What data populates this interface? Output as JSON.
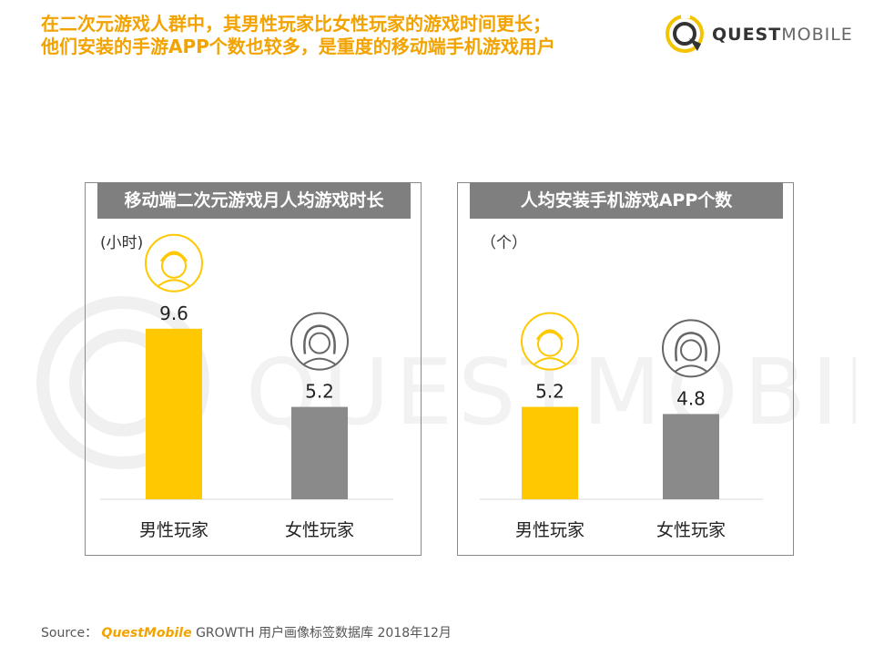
{
  "headline": {
    "line1": "在二次元游戏人群中，其男性玩家比女性玩家的游戏时间更长；",
    "line2": "他们安装的手游APP个数也较多，是重度的移动端手机游戏用户"
  },
  "logo": {
    "text_bold": "QUEST",
    "text_light": "MOBILE",
    "accent_color": "#f5c400",
    "icon": "questmobile-logo-icon"
  },
  "watermark": {
    "text": "QUESTMOBILE"
  },
  "colors": {
    "male": "#ffc800",
    "female": "#8a8a8a",
    "title_bg": "#7f7f7f",
    "headline": "#f2a300"
  },
  "chart_data": [
    {
      "type": "bar",
      "title": "移动端二次元游戏月人均游戏时长",
      "unit_label": "(小时)",
      "categories": [
        "男性玩家",
        "女性玩家"
      ],
      "values": [
        9.6,
        5.2
      ],
      "value_labels": [
        "9.6",
        "5.2"
      ],
      "icons": [
        "male-avatar-icon",
        "female-avatar-icon"
      ],
      "ylim": [
        0,
        11
      ],
      "grid": false,
      "legend": "none"
    },
    {
      "type": "bar",
      "title": "人均安装手机游戏APP个数",
      "unit_label": "（个）",
      "categories": [
        "男性玩家",
        "女性玩家"
      ],
      "values": [
        5.2,
        4.8
      ],
      "value_labels": [
        "5.2",
        "4.8"
      ],
      "icons": [
        "male-avatar-icon",
        "female-avatar-icon"
      ],
      "ylim": [
        0,
        11
      ],
      "grid": false,
      "legend": "none"
    }
  ],
  "source": {
    "label": "Source：",
    "brand": "QuestMobile",
    "rest": "GROWTH 用户画像标签数据库 2018年12月"
  }
}
